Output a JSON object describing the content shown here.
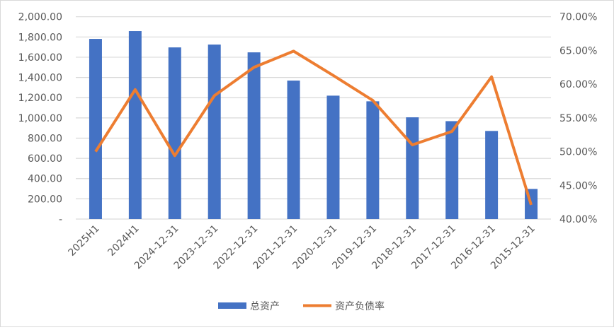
{
  "chart_data": {
    "type": "bar+line",
    "categories": [
      "2025H1",
      "2024H1",
      "2024-12-31",
      "2023-12-31",
      "2022-12-31",
      "2021-12-31",
      "2020-12-31",
      "2019-12-31",
      "2018-12-31",
      "2017-12-31",
      "2016-12-31",
      "2015-12-31"
    ],
    "series": [
      {
        "name": "总资产",
        "type": "bar",
        "axis": "left",
        "color": "#4472C4",
        "values": [
          1781,
          1858,
          1697,
          1725,
          1648,
          1369,
          1220,
          1164,
          1006,
          968,
          871,
          298
        ]
      },
      {
        "name": "资产负债率",
        "type": "line",
        "axis": "right",
        "color": "#ED7D31",
        "values": [
          50.0,
          59.2,
          49.4,
          58.3,
          62.5,
          64.9,
          61.3,
          57.6,
          51.0,
          53.0,
          61.1,
          42.1
        ]
      }
    ],
    "y_left": {
      "min": 0,
      "max": 2000,
      "step": 200,
      "tick_labels": [
        "-",
        "200.00",
        "400.00",
        "600.00",
        "800.00",
        "1,000.00",
        "1,200.00",
        "1,400.00",
        "1,600.00",
        "1,800.00",
        "2,000.00"
      ]
    },
    "y_right": {
      "min": 40,
      "max": 70,
      "step": 5,
      "unit": "%",
      "tick_labels": [
        "40.00%",
        "45.00%",
        "50.00%",
        "55.00%",
        "60.00%",
        "65.00%",
        "70.00%"
      ]
    },
    "grid": true,
    "legend": "bottom"
  }
}
